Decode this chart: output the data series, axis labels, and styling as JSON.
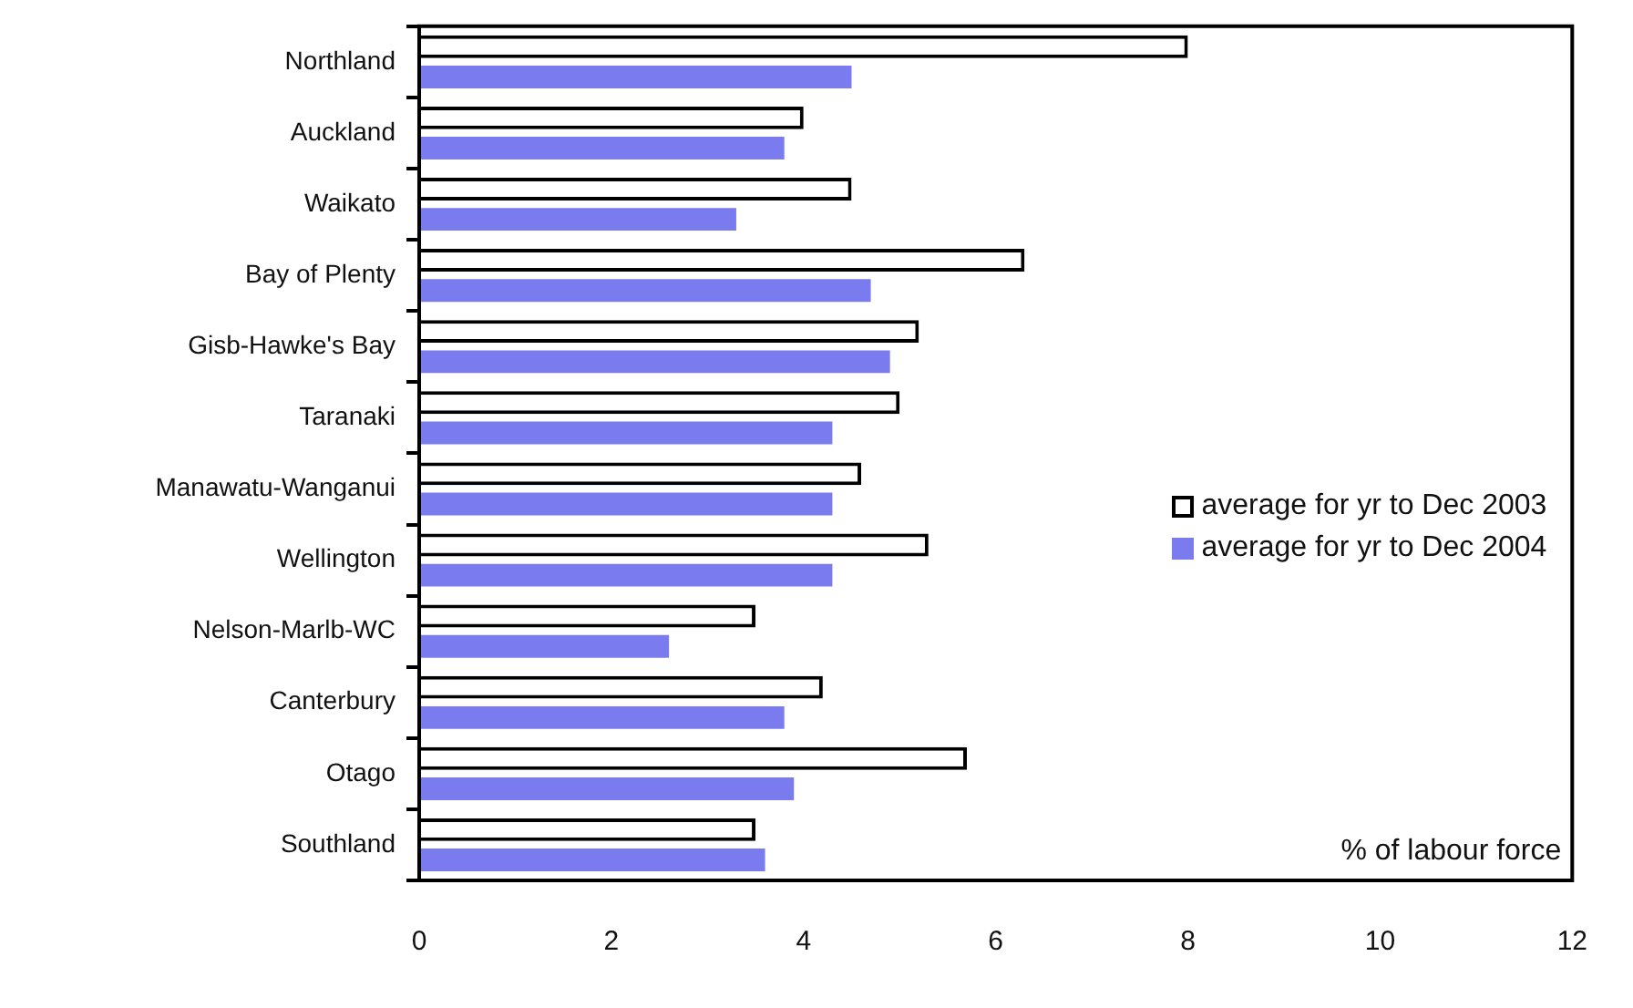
{
  "chart_data": {
    "type": "bar",
    "orientation": "horizontal",
    "categories": [
      "Northland",
      "Auckland",
      "Waikato",
      "Bay of Plenty",
      "Gisb-Hawke's Bay",
      "Taranaki",
      "Manawatu-Wanganui",
      "Wellington",
      "Nelson-Marlb-WC",
      "Canterbury",
      "Otago",
      "Southland"
    ],
    "series": [
      {
        "name": "average for yr to Dec 2003",
        "color": "#ffffff",
        "values": [
          8.0,
          4.0,
          4.5,
          6.3,
          5.2,
          5.0,
          4.6,
          5.3,
          3.5,
          4.2,
          5.7,
          3.5
        ]
      },
      {
        "name": "average for yr to Dec 2004",
        "color": "#7b7bf0",
        "values": [
          4.5,
          3.8,
          3.3,
          4.7,
          4.9,
          4.3,
          4.3,
          4.3,
          2.6,
          3.8,
          3.9,
          3.6
        ]
      }
    ],
    "xlim": [
      0,
      12
    ],
    "xticks": [
      0,
      2,
      4,
      6,
      8,
      10,
      12
    ],
    "grid": false,
    "legend": "right",
    "annotations": [
      "% of labour force"
    ]
  }
}
